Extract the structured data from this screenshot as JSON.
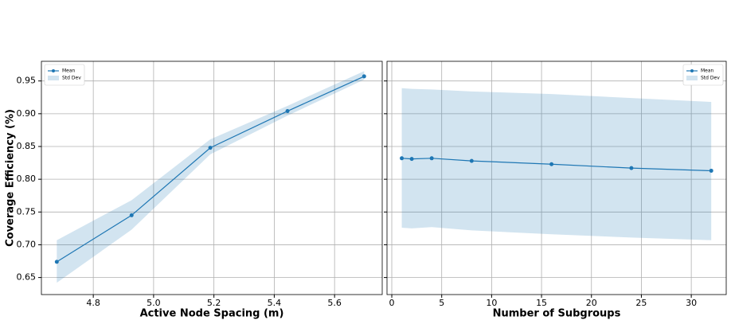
{
  "chart_data": [
    {
      "type": "line",
      "xlabel": "Active Node Spacing (m)",
      "ylabel": "Coverage Efficiency (%)",
      "x": [
        4.679,
        4.927,
        5.188,
        5.444,
        5.698
      ],
      "series": [
        {
          "name": "Mean",
          "color": "#1f77b4",
          "values": [
            0.674,
            0.745,
            0.848,
            0.904,
            0.957
          ]
        },
        {
          "name": "Std Dev",
          "color": "#1f77b4",
          "lower": [
            0.642,
            0.723,
            0.838,
            0.897,
            0.952
          ],
          "upper": [
            0.707,
            0.768,
            0.861,
            0.912,
            0.965
          ]
        }
      ],
      "xlim": [
        4.628,
        5.758
      ],
      "ylim": [
        0.624,
        0.98
      ],
      "xticks": [
        4.8,
        {
          "value": 5.0,
          "label": "5.0"
        },
        5.2,
        5.4,
        5.6
      ],
      "yticks": [
        0.65,
        {
          "value": 0.7,
          "label": "0.70"
        },
        0.75,
        {
          "value": 0.8,
          "label": "0.80"
        },
        0.85,
        {
          "value": 0.9,
          "label": "0.90"
        },
        0.95
      ],
      "grid": true,
      "legend": "upper-left"
    },
    {
      "type": "line",
      "xlabel": "Number of Subgroups",
      "x": [
        1,
        2,
        4,
        8,
        16,
        24,
        32
      ],
      "series": [
        {
          "name": "Mean",
          "color": "#1f77b4",
          "values": [
            0.832,
            0.831,
            0.832,
            0.828,
            0.823,
            0.817,
            0.813
          ]
        },
        {
          "name": "Std Dev",
          "color": "#1f77b4",
          "lower": [
            0.726,
            0.725,
            0.727,
            0.722,
            0.716,
            0.711,
            0.707
          ],
          "upper": [
            0.939,
            0.938,
            0.937,
            0.934,
            0.93,
            0.924,
            0.918
          ]
        }
      ],
      "xlim": [
        -0.48,
        33.5
      ],
      "ylim": [
        0.624,
        0.98
      ],
      "xticks": [
        0,
        5,
        10,
        15,
        20,
        25,
        30
      ],
      "yticks": [
        0.65,
        0.7,
        0.75,
        0.8,
        0.85,
        0.9,
        0.95
      ],
      "sharey": true,
      "grid": true,
      "legend": "upper-right"
    }
  ]
}
